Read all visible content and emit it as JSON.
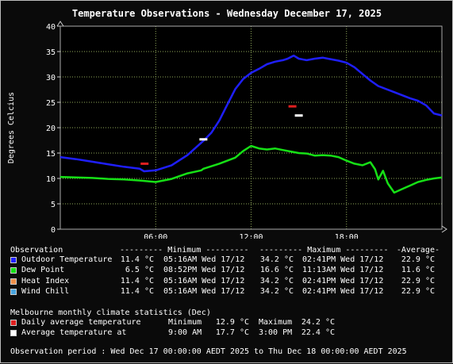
{
  "chart_data": {
    "type": "line",
    "title": "Temperature Observations - Wednesday December 17, 2025",
    "ylabel": "Degrees Celcius",
    "xlabel": "",
    "ylim": [
      0,
      40
    ],
    "yticks": [
      0,
      5,
      10,
      15,
      20,
      25,
      30,
      35,
      40
    ],
    "xlim": [
      0,
      24
    ],
    "xticks": [
      6,
      12,
      18
    ],
    "xtick_labels": [
      "06:00",
      "12:00",
      "18:00"
    ],
    "grid": true,
    "series": [
      {
        "name": "Outdoor Temperature",
        "color": "#1f1fff",
        "x": [
          0,
          1,
          2,
          3,
          4,
          5,
          5.27,
          6,
          7,
          8,
          9,
          9.5,
          10,
          10.5,
          11,
          11.5,
          12,
          12.5,
          13,
          13.5,
          14,
          14.3,
          14.68,
          15,
          15.5,
          16,
          16.5,
          17,
          17.5,
          18,
          18.5,
          19,
          19.5,
          20,
          21,
          22,
          22.5,
          23,
          23.5,
          24
        ],
        "y": [
          14.2,
          13.8,
          13.3,
          12.8,
          12.3,
          11.9,
          11.4,
          11.6,
          12.6,
          14.6,
          17.4,
          19.0,
          21.4,
          24.5,
          27.6,
          29.6,
          30.8,
          31.6,
          32.5,
          33.0,
          33.3,
          33.6,
          34.2,
          33.6,
          33.3,
          33.6,
          33.8,
          33.5,
          33.2,
          32.8,
          31.9,
          30.6,
          29.3,
          28.2,
          27.0,
          25.8,
          25.3,
          24.4,
          22.8,
          22.4
        ]
      },
      {
        "name": "Dew Point",
        "color": "#16e016",
        "x": [
          0,
          1,
          2,
          3,
          4,
          5,
          6,
          7,
          8,
          8.87,
          9,
          10,
          11,
          11.5,
          12,
          12.5,
          13,
          13.5,
          14,
          14.5,
          15,
          15.5,
          16,
          16.5,
          17,
          17.5,
          18,
          18.5,
          19,
          19.5,
          19.8,
          20,
          20.3,
          20.6,
          21,
          21.5,
          22,
          22.5,
          23,
          23.5,
          24
        ],
        "y": [
          10.3,
          10.2,
          10.1,
          9.9,
          9.8,
          9.6,
          9.3,
          9.9,
          11.0,
          11.6,
          11.9,
          12.9,
          14.1,
          15.4,
          16.4,
          15.9,
          15.7,
          15.9,
          15.6,
          15.3,
          15.0,
          14.9,
          14.5,
          14.6,
          14.5,
          14.2,
          13.5,
          12.9,
          12.6,
          13.2,
          11.8,
          9.8,
          11.5,
          9.0,
          7.2,
          7.9,
          8.6,
          9.3,
          9.7,
          10.0,
          10.2
        ]
      }
    ],
    "markers": [
      {
        "name": "Daily average minimum",
        "color": "#e02020",
        "x": 5.3,
        "y": 12.9
      },
      {
        "name": "Daily average maximum",
        "color": "#e02020",
        "x": 14.6,
        "y": 24.2
      },
      {
        "name": "Average minimum temperature",
        "color": "#ffffff",
        "x": 9.0,
        "y": 17.7
      },
      {
        "name": "Average maximum temperature",
        "color": "#ffffff",
        "x": 15.0,
        "y": 22.4
      }
    ]
  },
  "table": {
    "header": {
      "observation": "Observation",
      "minimum": "--------- Minimum ---------",
      "maximum": "--------- Maximum ---------",
      "average": "-Average-"
    },
    "rows": [
      {
        "color": "#1f1fff",
        "label": "Outdoor Temperature",
        "min": "11.4 °C",
        "min_time": "05:16AM Wed 17/12",
        "max": "34.2 °C",
        "max_time": "02:41PM Wed 17/12",
        "avg": "22.9 °C"
      },
      {
        "color": "#16e016",
        "label": "Dew Point",
        "min": "6.5 °C",
        "min_time": "08:52PM Wed 17/12",
        "max": "16.6 °C",
        "max_time": "11:13AM Wed 17/12",
        "avg": "11.6 °C"
      },
      {
        "color": "#f0904a",
        "label": "Heat Index",
        "min": "11.4 °C",
        "min_time": "05:16AM Wed 17/12",
        "max": "34.2 °C",
        "max_time": "02:41PM Wed 17/12",
        "avg": "22.9 °C"
      },
      {
        "color": "#4aa6e0",
        "label": "Wind Chill",
        "min": "11.4 °C",
        "min_time": "05:16AM Wed 17/12",
        "max": "34.2 °C",
        "max_time": "02:41PM Wed 17/12",
        "avg": "22.9 °C"
      }
    ]
  },
  "climate": {
    "heading": "Melbourne monthly climate statistics (Dec)",
    "rows": [
      {
        "color": "#e02020",
        "label": "Daily average temperature",
        "min_label": "Minimum",
        "min_value": "12.9 °C",
        "max_label": "Maximum",
        "max_value": "24.2 °C"
      },
      {
        "color": "#ffffff",
        "label": "Average temperature at",
        "min_label": "9:00 AM",
        "min_value": "17.7 °C",
        "max_label": "3:00 PM",
        "max_value": "22.4 °C"
      }
    ]
  },
  "period": "Observation period : Wed Dec 17 00:00:00 AEDT 2025 to Thu Dec 18 00:00:00 AEDT 2025"
}
